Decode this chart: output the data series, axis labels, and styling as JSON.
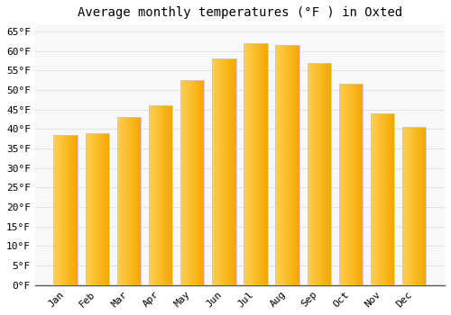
{
  "title": "Average monthly temperatures (°F ) in Oxted",
  "months": [
    "Jan",
    "Feb",
    "Mar",
    "Apr",
    "May",
    "Jun",
    "Jul",
    "Aug",
    "Sep",
    "Oct",
    "Nov",
    "Dec"
  ],
  "values": [
    38.5,
    39.0,
    43.0,
    46.0,
    52.5,
    58.0,
    62.0,
    61.5,
    57.0,
    51.5,
    44.0,
    40.5
  ],
  "bar_color_left": "#FFD050",
  "bar_color_right": "#F5A800",
  "bar_edge_color": "#C8C8C8",
  "background_color": "#FFFFFF",
  "plot_bg_color": "#F8F8F8",
  "grid_color": "#DDDDDD",
  "title_fontsize": 10,
  "tick_fontsize": 8,
  "ylim": [
    0,
    67
  ],
  "yticks": [
    0,
    5,
    10,
    15,
    20,
    25,
    30,
    35,
    40,
    45,
    50,
    55,
    60,
    65
  ]
}
